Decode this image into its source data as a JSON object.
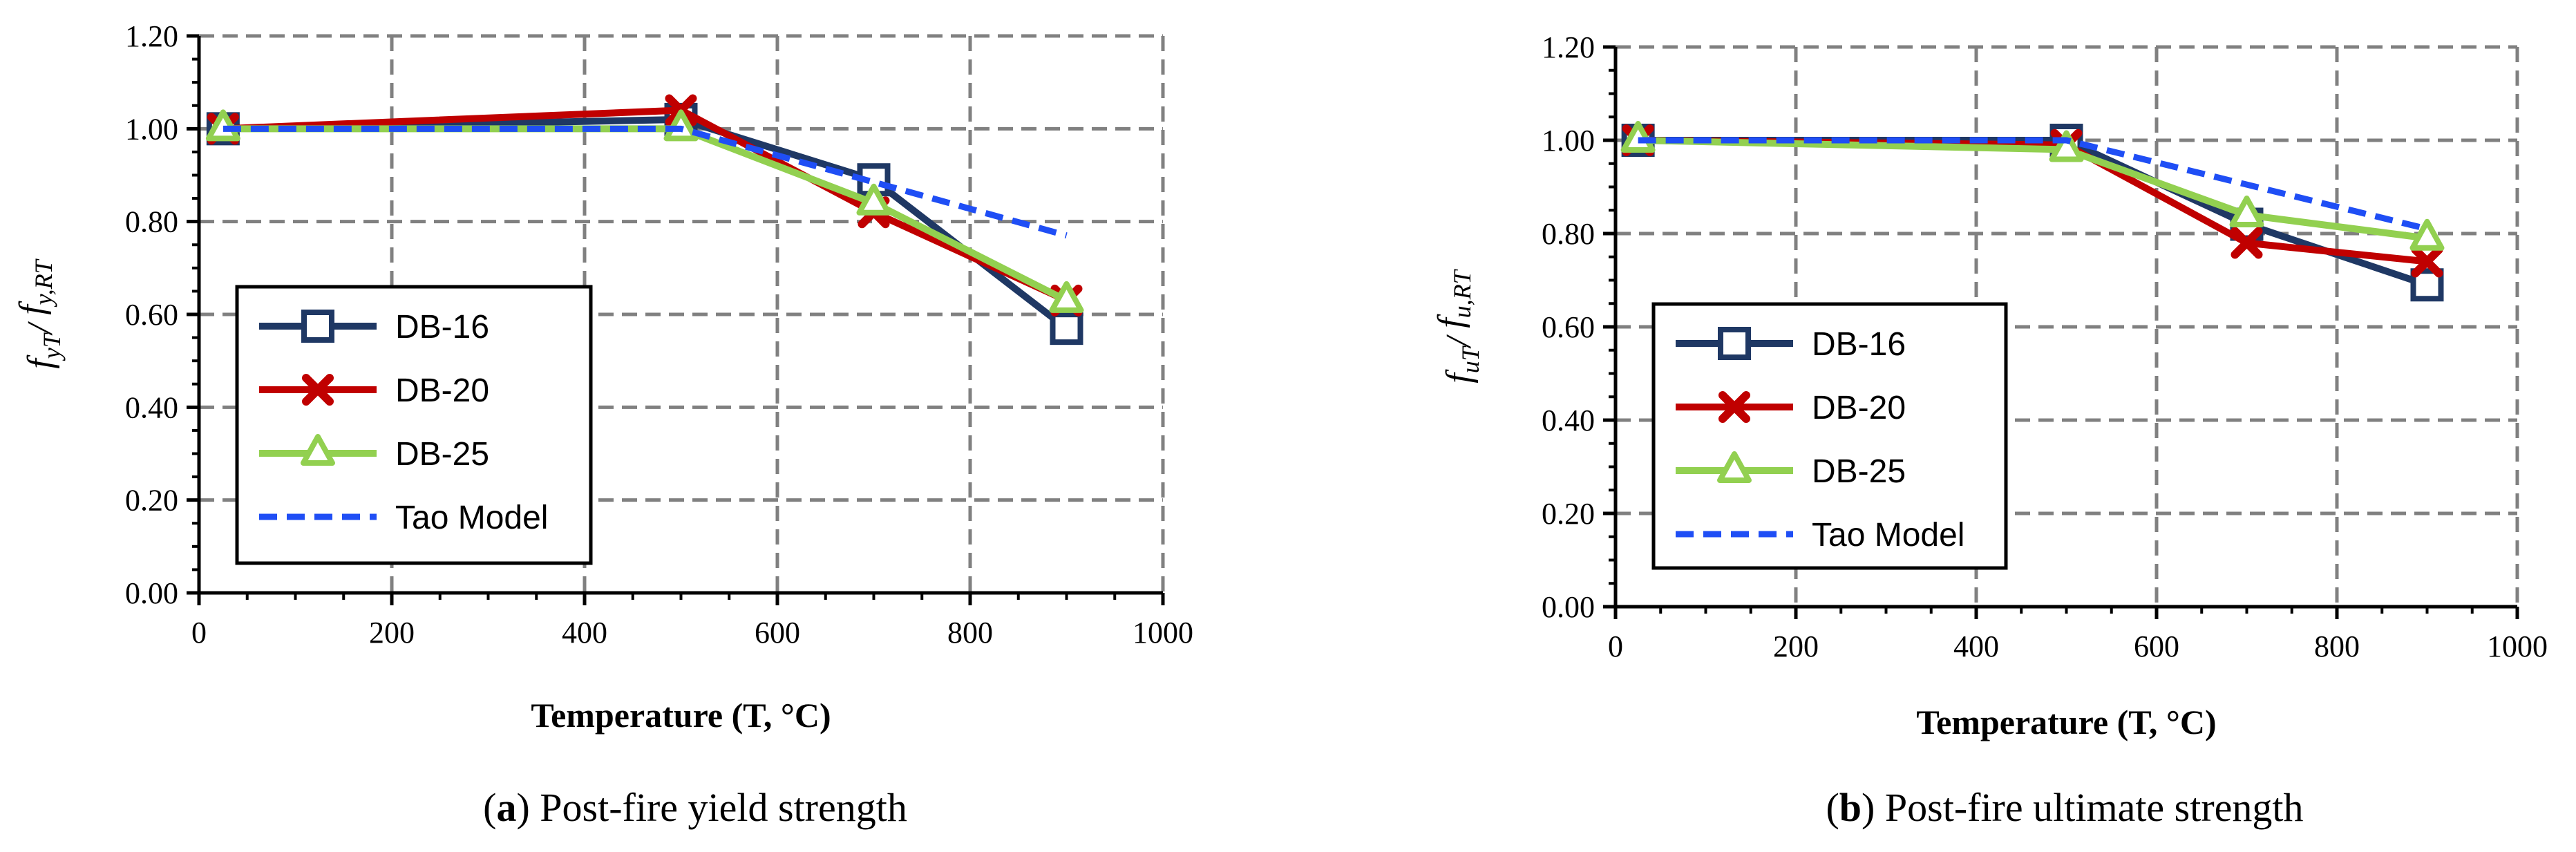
{
  "chart_data": [
    {
      "type": "line",
      "panel_label": "a",
      "caption_text": " Post-fire yield strength",
      "ylabel": {
        "var": "f",
        "num_sub": "yT",
        "slash": "/ ",
        "den_var": "f",
        "den_sub": "y,RT"
      },
      "xlabel": "Temperature (T, °C)",
      "xlim": [
        0,
        1000
      ],
      "ylim": [
        0,
        1.2
      ],
      "xticks": [
        "0",
        "200",
        "400",
        "600",
        "800",
        "1000"
      ],
      "yticks": [
        "0.00",
        "0.20",
        "0.40",
        "0.60",
        "0.80",
        "1.00",
        "1.20"
      ],
      "grid": true,
      "legend_position": "bottom-left",
      "series": [
        {
          "name": "DB-16",
          "color": "#1f3864",
          "marker": "square",
          "dash": "solid",
          "points": [
            [
              25,
              1.0
            ],
            [
              500,
              1.02
            ],
            [
              700,
              0.89
            ],
            [
              900,
              0.57
            ]
          ]
        },
        {
          "name": "DB-20",
          "color": "#c00000",
          "marker": "x",
          "dash": "solid",
          "points": [
            [
              25,
              1.0
            ],
            [
              500,
              1.04
            ],
            [
              700,
              0.82
            ],
            [
              900,
              0.63
            ]
          ]
        },
        {
          "name": "DB-25",
          "color": "#92d050",
          "marker": "triangle",
          "dash": "solid",
          "points": [
            [
              25,
              1.0
            ],
            [
              500,
              1.0
            ],
            [
              700,
              0.84
            ],
            [
              900,
              0.63
            ]
          ]
        },
        {
          "name": "Tao Model",
          "color": "#1f4ef5",
          "marker": "none",
          "dash": "dashed",
          "points": [
            [
              25,
              1.0
            ],
            [
              500,
              1.0
            ],
            [
              900,
              0.77
            ]
          ]
        }
      ]
    },
    {
      "type": "line",
      "panel_label": "b",
      "caption_text": " Post-fire ultimate strength",
      "ylabel": {
        "var": "f",
        "num_sub": "uT",
        "slash": "/ ",
        "den_var": "f",
        "den_sub": "u,RT"
      },
      "xlabel": "Temperature (T, °C)",
      "xlim": [
        0,
        1000
      ],
      "ylim": [
        0,
        1.2
      ],
      "xticks": [
        "0",
        "200",
        "400",
        "600",
        "800",
        "1000"
      ],
      "yticks": [
        "0.00",
        "0.20",
        "0.40",
        "0.60",
        "0.80",
        "1.00",
        "1.20"
      ],
      "grid": true,
      "legend_position": "bottom-left",
      "series": [
        {
          "name": "DB-16",
          "color": "#1f3864",
          "marker": "square",
          "dash": "solid",
          "points": [
            [
              25,
              1.0
            ],
            [
              500,
              1.0
            ],
            [
              700,
              0.82
            ],
            [
              900,
              0.69
            ]
          ]
        },
        {
          "name": "DB-20",
          "color": "#c00000",
          "marker": "x",
          "dash": "solid",
          "points": [
            [
              25,
              1.0
            ],
            [
              500,
              0.99
            ],
            [
              700,
              0.78
            ],
            [
              900,
              0.74
            ]
          ]
        },
        {
          "name": "DB-25",
          "color": "#92d050",
          "marker": "triangle",
          "dash": "solid",
          "points": [
            [
              25,
              1.0
            ],
            [
              500,
              0.98
            ],
            [
              700,
              0.84
            ],
            [
              900,
              0.79
            ]
          ]
        },
        {
          "name": "Tao Model",
          "color": "#1f4ef5",
          "marker": "none",
          "dash": "dashed",
          "points": [
            [
              25,
              1.0
            ],
            [
              500,
              1.0
            ],
            [
              900,
              0.81
            ]
          ]
        }
      ]
    }
  ]
}
